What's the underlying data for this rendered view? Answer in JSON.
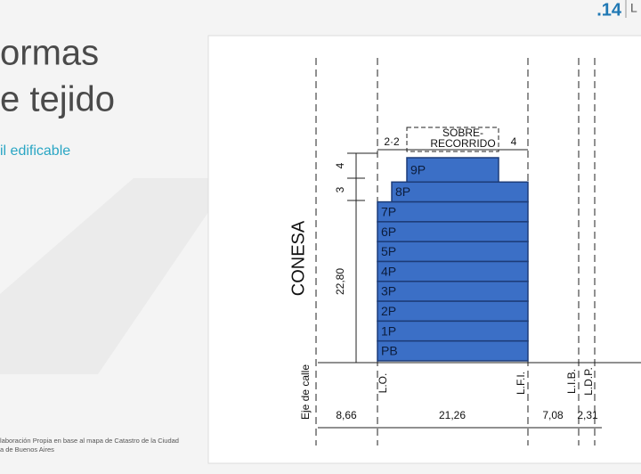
{
  "header": {
    "page_number": ".14",
    "logo": "L"
  },
  "title": [
    "ormas",
    "e tejido"
  ],
  "subtitle": "il edificable",
  "source": [
    "laboración Propia en base al mapa de Catastro de la Ciudad",
    "a de Buenos Aires"
  ],
  "diagram": {
    "street": "CONESA",
    "floors": [
      "9P",
      "8P",
      "7P",
      "6P",
      "5P",
      "4P",
      "3P",
      "2P",
      "1P",
      "PB"
    ],
    "heights": [
      "4",
      "3",
      "22,80"
    ],
    "setbacks": [
      "2·2",
      "4"
    ],
    "overrun": [
      "SOBRE-",
      "RECORRIDO"
    ],
    "lines": [
      "Eje de calle",
      "L.O.",
      "L.F.I.",
      "L.I.B.",
      "L.D.P."
    ],
    "widths": [
      "8,66",
      "21,26",
      "7,08",
      "2,31"
    ]
  }
}
